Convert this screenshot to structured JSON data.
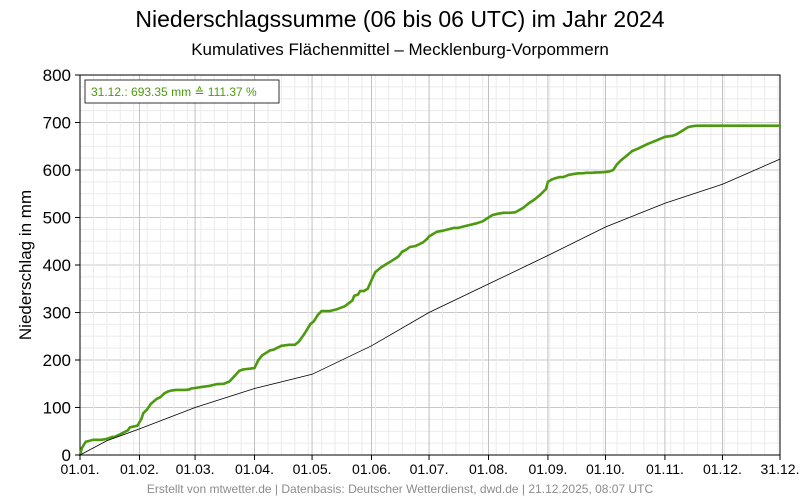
{
  "title": "Niederschlagssumme (06 bis 06 UTC) im Jahr 2024",
  "subtitle": "Kumulatives Flächenmittel – Mecklenburg-Vorpommern",
  "footer": "Erstellt von mtwetter.de | Datenbasis: Deutscher Wetterdienst, dwd.de | 21.12.2025, 08:07 UTC",
  "colors": {
    "current": "#4c9a0f",
    "mean": "#000000",
    "grid": "#d8d8d8",
    "annotation": "#4c9a0f"
  },
  "chart_data": {
    "type": "line",
    "title": "Niederschlagssumme (06 bis 06 UTC) im Jahr 2024",
    "subtitle": "Kumulatives Flächenmittel – Mecklenburg-Vorpommern",
    "ylabel": "Niederschlag in mm",
    "xlabel": "",
    "ylim": [
      0,
      800
    ],
    "yticks": [
      0,
      100,
      200,
      300,
      400,
      500,
      600,
      700,
      800
    ],
    "xticks": [
      "01.01.",
      "01.02.",
      "01.03.",
      "01.04.",
      "01.05.",
      "01.06.",
      "01.07.",
      "01.08.",
      "01.09.",
      "01.10.",
      "01.11.",
      "01.12.",
      "31.12."
    ],
    "xtick_days": [
      1,
      32,
      61,
      92,
      122,
      153,
      183,
      214,
      245,
      275,
      306,
      336,
      366
    ],
    "xlim_days": [
      1,
      366
    ],
    "grid": true,
    "annotation": "31.12.: 693.35 mm ≙ 111.37 %",
    "series": [
      {
        "key": "current",
        "x_days": [
          1,
          2,
          4,
          8,
          12,
          15,
          18,
          19,
          21,
          26,
          27,
          29,
          31,
          33,
          34,
          36,
          38,
          41,
          43,
          45,
          47,
          49,
          51,
          54,
          56,
          58,
          59,
          61,
          64,
          68,
          72,
          76,
          79,
          82,
          84,
          86,
          88,
          90,
          92,
          94,
          96,
          100,
          102,
          106,
          110,
          112,
          113,
          115,
          118,
          121,
          123,
          125,
          127,
          131,
          135,
          139,
          143,
          144,
          146,
          147,
          149,
          151,
          153,
          155,
          158,
          160,
          162,
          164,
          167,
          169,
          171,
          173,
          176,
          180,
          182,
          183,
          185,
          187,
          190,
          193,
          196,
          198,
          200,
          202,
          205,
          208,
          211,
          214,
          216,
          219,
          222,
          225,
          228,
          232,
          235,
          238,
          241,
          244,
          245,
          247,
          249,
          251,
          253,
          256,
          259,
          261,
          263,
          265,
          268,
          270,
          272,
          275,
          277,
          279,
          281,
          283,
          286,
          289,
          292,
          297,
          302,
          306,
          310,
          312,
          314,
          316,
          318,
          320,
          322,
          324,
          327,
          330,
          332,
          334,
          337,
          340,
          342,
          345,
          348,
          351,
          353,
          356,
          359,
          362,
          364,
          366
        ],
        "values": [
          0,
          15,
          28,
          32,
          32,
          34,
          38,
          38,
          42,
          52,
          58,
          60,
          62,
          76,
          88,
          96,
          108,
          118,
          122,
          130,
          134,
          136,
          137,
          137,
          137,
          138,
          140,
          141,
          143,
          145,
          149,
          150,
          155,
          168,
          177,
          180,
          181,
          182,
          183,
          200,
          210,
          220,
          222,
          230,
          232,
          232,
          232,
          238,
          255,
          275,
          282,
          295,
          303,
          303,
          307,
          313,
          325,
          335,
          338,
          345,
          345,
          350,
          368,
          385,
          395,
          400,
          405,
          410,
          418,
          428,
          432,
          438,
          440,
          448,
          455,
          460,
          465,
          470,
          472,
          475,
          478,
          478,
          480,
          482,
          485,
          488,
          492,
          500,
          505,
          508,
          510,
          510,
          511,
          520,
          530,
          538,
          548,
          560,
          575,
          580,
          583,
          585,
          585,
          590,
          592,
          593,
          593,
          594,
          594,
          595,
          595,
          596,
          597,
          600,
          612,
          620,
          630,
          640,
          645,
          655,
          663,
          670,
          672,
          675,
          680,
          685,
          690,
          692,
          693,
          693.35,
          693.35,
          693.35,
          693.35,
          693.35,
          693.35,
          693.35,
          693.35,
          693.35,
          693.35,
          693.35,
          693.35,
          693.35,
          693.35,
          693.35,
          693.35,
          693.35
        ]
      },
      {
        "key": "mean",
        "x_days": [
          1,
          15,
          32,
          61,
          92,
          122,
          153,
          183,
          214,
          245,
          275,
          306,
          336,
          366
        ],
        "values": [
          0,
          30,
          55,
          100,
          140,
          170,
          230,
          300,
          360,
          420,
          480,
          530,
          570,
          623
        ]
      }
    ]
  }
}
